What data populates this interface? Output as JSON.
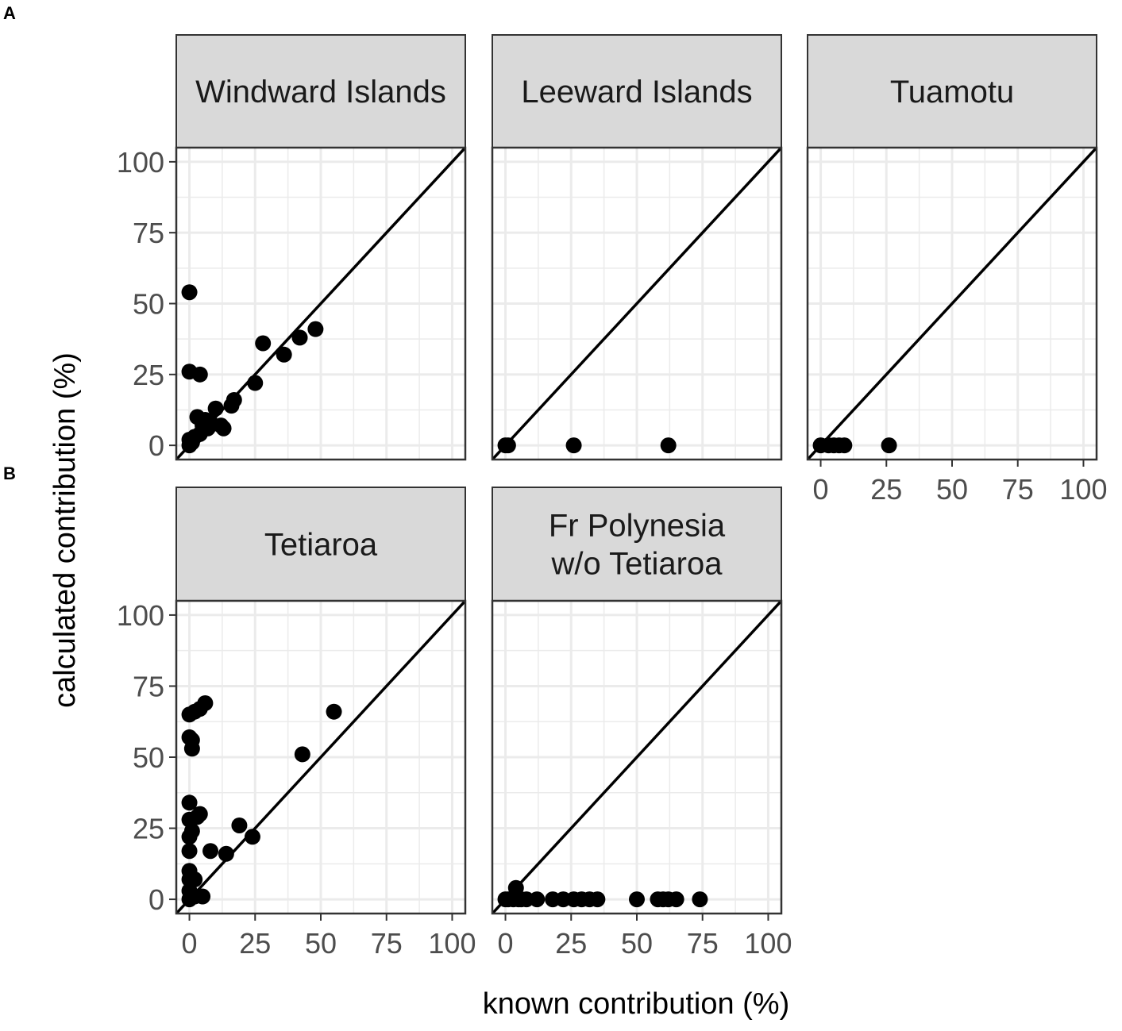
{
  "figure": {
    "panel_tags": [
      "A",
      "B"
    ],
    "xlabel": "known contribution (%)",
    "ylabel": "calculated contribution (%)"
  },
  "colors": {
    "point": "#000000",
    "strip_fill": "#d9d9d9",
    "grid": "#ebebeb",
    "frame": "#333333"
  },
  "chart_data": [
    {
      "type": "scatter",
      "title": "Windward Islands",
      "xlim": [
        0,
        100
      ],
      "ylim": [
        0,
        100
      ],
      "xticks": [
        0,
        25,
        50,
        75,
        100
      ],
      "yticks": [
        0,
        25,
        50,
        75,
        100
      ],
      "reference_line": "y = x",
      "x": [
        0,
        0,
        0,
        0,
        1,
        2,
        3,
        4,
        4,
        5,
        6,
        7,
        8,
        10,
        12,
        13,
        16,
        17,
        25,
        28,
        36,
        42,
        48
      ],
      "y": [
        54,
        26,
        2,
        0,
        1,
        3,
        10,
        4,
        25,
        7,
        9,
        6,
        8,
        13,
        7,
        6,
        14,
        16,
        22,
        36,
        32,
        38,
        41
      ]
    },
    {
      "type": "scatter",
      "title": "Leeward Islands",
      "xlim": [
        0,
        100
      ],
      "ylim": [
        0,
        100
      ],
      "xticks": [
        0,
        25,
        50,
        75,
        100
      ],
      "yticks": [
        0,
        25,
        50,
        75,
        100
      ],
      "reference_line": "y = x",
      "x": [
        0,
        1,
        26,
        62
      ],
      "y": [
        0,
        0,
        0,
        0
      ]
    },
    {
      "type": "scatter",
      "title": "Tuamotu",
      "xlim": [
        0,
        100
      ],
      "ylim": [
        0,
        100
      ],
      "xticks": [
        0,
        25,
        50,
        75,
        100
      ],
      "yticks": [
        0,
        25,
        50,
        75,
        100
      ],
      "reference_line": "y = x",
      "x": [
        0,
        3,
        5,
        7,
        9,
        26
      ],
      "y": [
        0,
        0,
        0,
        0,
        0,
        0
      ]
    },
    {
      "type": "scatter",
      "title": "Tetiaroa",
      "xlim": [
        0,
        100
      ],
      "ylim": [
        0,
        100
      ],
      "xticks": [
        0,
        25,
        50,
        75,
        100
      ],
      "yticks": [
        0,
        25,
        50,
        75,
        100
      ],
      "reference_line": "y = x",
      "x": [
        0,
        0,
        0,
        0,
        0,
        0,
        0,
        0,
        0,
        0,
        1,
        1,
        1,
        2,
        2,
        2,
        3,
        4,
        4,
        5,
        6,
        8,
        14,
        19,
        24,
        43,
        55
      ],
      "y": [
        65,
        57,
        34,
        28,
        22,
        17,
        10,
        7,
        3,
        0,
        56,
        53,
        24,
        7,
        1,
        66,
        29,
        67,
        30,
        1,
        69,
        17,
        16,
        26,
        22,
        51,
        66
      ]
    },
    {
      "type": "scatter",
      "title": "Fr Polynesia\nw/o Tetiaroa",
      "title_lines": [
        "Fr Polynesia",
        "w/o Tetiaroa"
      ],
      "xlim": [
        0,
        100
      ],
      "ylim": [
        0,
        100
      ],
      "xticks": [
        0,
        25,
        50,
        75,
        100
      ],
      "yticks": [
        0,
        25,
        50,
        75,
        100
      ],
      "reference_line": "y = x",
      "x": [
        0,
        1,
        3,
        4,
        5,
        6,
        8,
        12,
        18,
        22,
        26,
        29,
        32,
        35,
        50,
        58,
        60,
        62,
        65,
        74
      ],
      "y": [
        0,
        0,
        0,
        4,
        0,
        0,
        0,
        0,
        0,
        0,
        0,
        0,
        0,
        0,
        0,
        0,
        0,
        0,
        0,
        0
      ]
    }
  ]
}
